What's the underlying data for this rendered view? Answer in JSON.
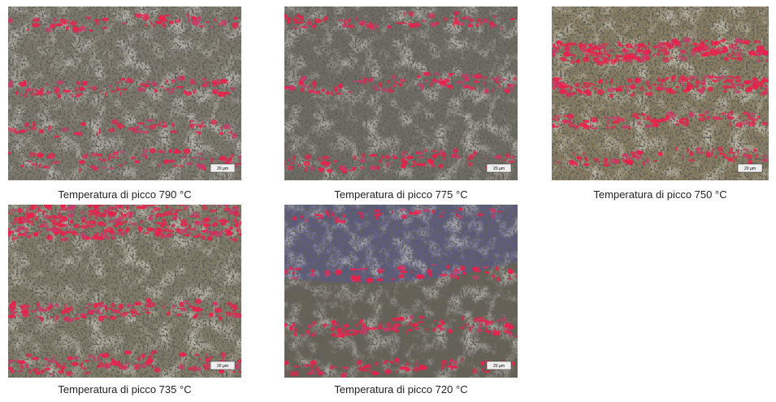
{
  "scale_bar": "20 µm",
  "panels": [
    {
      "caption": "Temperatura di picco 790 °C"
    },
    {
      "caption": "Temperatura di picco 775 °C"
    },
    {
      "caption": "Temperatura di picco 750 °C"
    },
    {
      "caption": "Temperatura di picco 735 °C"
    },
    {
      "caption": "Temperatura di picco 720 °C"
    }
  ]
}
